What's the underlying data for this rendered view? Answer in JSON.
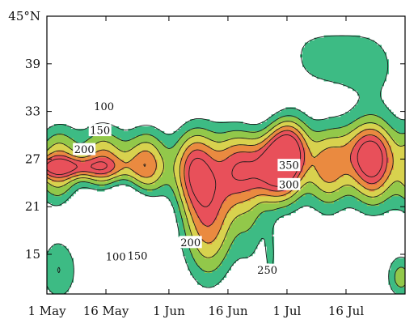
{
  "chart_data": {
    "type": "heatmap",
    "title": "",
    "xlabel": "",
    "ylabel": "",
    "x_ticks": [
      {
        "label": "1 May",
        "day": 0
      },
      {
        "label": "16 May",
        "day": 15
      },
      {
        "label": "1 Jun",
        "day": 31
      },
      {
        "label": "16 Jun",
        "day": 46
      },
      {
        "label": "1 Jul",
        "day": 61
      },
      {
        "label": "16 Jul",
        "day": 76
      }
    ],
    "y_ticks": [
      {
        "label": "45°N",
        "lat": 45
      },
      {
        "label": "39",
        "lat": 39
      },
      {
        "label": "33",
        "lat": 33
      },
      {
        "label": "27",
        "lat": 27
      },
      {
        "label": "21",
        "lat": 21
      },
      {
        "label": "15",
        "lat": 15
      }
    ],
    "xlim": [
      0,
      91
    ],
    "ylim": [
      10,
      45
    ],
    "contour_levels": [
      100,
      150,
      200,
      250,
      300,
      350
    ],
    "fill_colors": {
      "100": "#3dbb84",
      "150": "#92c84a",
      "200": "#d8d24e",
      "250": "#ea8a40",
      "300": "#e8505a",
      "350": "#e8505a"
    },
    "contour_labels": [
      {
        "text": "100",
        "day": 14.5,
        "lat": 33.6
      },
      {
        "text": "150",
        "day": 13.5,
        "lat": 30.6
      },
      {
        "text": "200",
        "day": 9.5,
        "lat": 28.2
      },
      {
        "text": "350",
        "day": 61.5,
        "lat": 26.2
      },
      {
        "text": "300",
        "day": 61.5,
        "lat": 23.8
      },
      {
        "text": "100",
        "day": 17.5,
        "lat": 14.7
      },
      {
        "text": "150",
        "day": 23.0,
        "lat": 14.8
      },
      {
        "text": "200",
        "day": 36.5,
        "lat": 16.5
      },
      {
        "text": "250",
        "day": 56.0,
        "lat": 13.0
      }
    ],
    "features": [
      {
        "day": 5,
        "lat": 26,
        "a": 170,
        "sx": 13,
        "sy": 1.3
      },
      {
        "day": 9,
        "lat": 27,
        "a": 60,
        "sx": 15,
        "sy": 6
      },
      {
        "day": 22,
        "lat": 25.5,
        "a": 70,
        "sx": 6,
        "sy": 4
      },
      {
        "day": 41,
        "lat": 20,
        "a": 270,
        "sx": 7,
        "sy": 9
      },
      {
        "day": 56,
        "lat": 26,
        "a": 200,
        "sx": 6,
        "sy": 4
      },
      {
        "day": 62,
        "lat": 28.5,
        "a": 210,
        "sx": 5,
        "sy": 4
      },
      {
        "day": 81,
        "lat": 28,
        "a": 175,
        "sx": 7,
        "sy": 4
      },
      {
        "day": 52,
        "lat": 18,
        "a": 80,
        "sx": 4,
        "sy": 7
      },
      {
        "day": 57,
        "lat": 14,
        "a": 80,
        "sx": 2,
        "sy": 5
      },
      {
        "day": 71,
        "lat": 14,
        "a": 60,
        "sx": 4,
        "sy": 4
      },
      {
        "day": 90,
        "lat": 12,
        "a": 160,
        "sx": 4,
        "sy": 3
      },
      {
        "day": 70,
        "lat": 40,
        "a": 120,
        "sx": 16,
        "sy": 5
      },
      {
        "day": 84,
        "lat": 38,
        "a": 60,
        "sx": 9,
        "sy": 7
      },
      {
        "day": 3,
        "lat": 13,
        "a": 150,
        "sx": 6,
        "sy": 5
      },
      {
        "day": 18,
        "lat": 21,
        "a": -170,
        "sx": 10,
        "sy": 4
      },
      {
        "day": 52,
        "lat": 39,
        "a": -140,
        "sx": 8,
        "sy": 4
      }
    ],
    "base_profile": {
      "center_lat": 26,
      "width_lat": 5,
      "amplitude": 175,
      "growth_per_day": 0.7
    }
  }
}
